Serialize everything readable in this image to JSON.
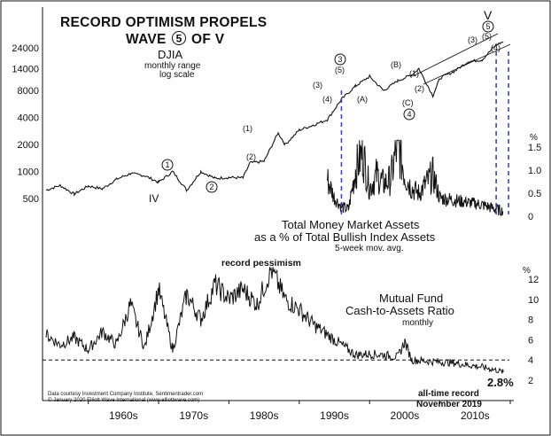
{
  "colors": {
    "line": "#111111",
    "projection": "#3a45c8",
    "background": "#ffffff"
  },
  "chart_data": [
    {
      "type": "line",
      "title": "RECORD OPTIMISM PROPELS",
      "title_line2_prefix": "WAVE",
      "title_line2_circled": "5",
      "title_line2_suffix": "OF V",
      "series_label": "DJIA",
      "series_sublabel_1": "monthly range",
      "series_sublabel_2": "log scale",
      "yscale": "log",
      "yticks": [
        "24000",
        "14000",
        "8000",
        "4000",
        "2000",
        "1000",
        "500"
      ],
      "ytick_values": [
        24000,
        14000,
        8000,
        4000,
        2000,
        1000,
        500
      ],
      "x": [
        1954,
        1956,
        1958,
        1960,
        1962,
        1964,
        1966,
        1968,
        1970,
        1972,
        1974,
        1976,
        1978,
        1980,
        1982,
        1983,
        1985,
        1987,
        1988,
        1990,
        1992,
        1994,
        1996,
        1998,
        2000,
        2002,
        2004,
        2006,
        2007,
        2009,
        2010,
        2012,
        2014,
        2016,
        2018,
        2019
      ],
      "values": [
        620,
        700,
        560,
        690,
        640,
        820,
        950,
        900,
        760,
        1000,
        620,
        1000,
        840,
        860,
        850,
        1250,
        1300,
        2700,
        2000,
        2900,
        3300,
        3800,
        6400,
        9000,
        11500,
        8000,
        10300,
        12000,
        14100,
        7000,
        11000,
        13100,
        16800,
        17700,
        26000,
        28000
      ],
      "wave_labels": [
        {
          "text": "IV",
          "x": 1974
        },
        {
          "text": "1",
          "circled": true,
          "x": 1972
        },
        {
          "text": "2",
          "circled": true,
          "x": 1982
        },
        {
          "text": "(1)",
          "x": 1987
        },
        {
          "text": "(2)",
          "x": 1987
        },
        {
          "text": "3",
          "circled": true,
          "x": 2000
        },
        {
          "text": "(5)",
          "x": 2000
        },
        {
          "text": "(3)",
          "x": 1998
        },
        {
          "text": "(4)",
          "x": 1998
        },
        {
          "text": "(A)",
          "x": 2002
        },
        {
          "text": "(B)",
          "x": 2007
        },
        {
          "text": "(C)",
          "x": 2009
        },
        {
          "text": "4",
          "circled": true,
          "x": 2009
        },
        {
          "text": "(1)",
          "x": 2010
        },
        {
          "text": "(2)",
          "x": 2010
        },
        {
          "text": "(3)",
          "x": 2018
        },
        {
          "text": "5",
          "circled": true,
          "x": 2019
        },
        {
          "text": "(5)",
          "x": 2019
        },
        {
          "text": "(4)",
          "x": 2019
        },
        {
          "text": "V",
          "x": 2019
        }
      ]
    },
    {
      "type": "line",
      "label_line1": "Total Money Market Assets",
      "label_line2": "as a % of Total Bullish Index Assets",
      "label_line3": "5-week mov. avg.",
      "unit": "%",
      "yticks": [
        "1.5",
        "1.0",
        "0.5",
        "0"
      ],
      "ylim": [
        0,
        1.6
      ],
      "x": [
        1994,
        1995,
        1996,
        1997,
        1998,
        1999,
        2000,
        2001,
        2002,
        2003,
        2004,
        2005,
        2006,
        2007,
        2008,
        2009,
        2010,
        2012,
        2014,
        2016,
        2018,
        2019
      ],
      "values": [
        0.8,
        0.4,
        0.2,
        0.15,
        1.0,
        1.4,
        0.6,
        0.9,
        0.7,
        0.8,
        1.6,
        0.9,
        0.6,
        0.5,
        0.7,
        0.9,
        0.4,
        0.35,
        0.3,
        0.25,
        0.15,
        0.1
      ],
      "projection_lines_x": [
        1996,
        2018,
        2019
      ]
    },
    {
      "type": "line",
      "annotation_top": "record pessimism",
      "label_line1": "Mutual Fund",
      "label_line2": "Cash-to-Assets Ratio",
      "label_line3": "monthly",
      "unit": "%",
      "yticks": [
        "12",
        "10",
        "8",
        "6",
        "4",
        "2"
      ],
      "ylim": [
        2,
        13
      ],
      "reference_line": 4,
      "x": [
        1954,
        1956,
        1958,
        1960,
        1962,
        1964,
        1966,
        1968,
        1970,
        1972,
        1974,
        1976,
        1978,
        1980,
        1982,
        1984,
        1986,
        1988,
        1990,
        1992,
        1994,
        1996,
        1998,
        2000,
        2002,
        2004,
        2005,
        2006,
        2008,
        2010,
        2012,
        2014,
        2016,
        2018,
        2019
      ],
      "values": [
        6.5,
        5.5,
        6.2,
        5.0,
        6.8,
        5.5,
        9.5,
        5.2,
        11.0,
        5.0,
        10.5,
        8.0,
        11.5,
        10.0,
        11.0,
        9.5,
        13.0,
        10.0,
        9.0,
        7.5,
        6.5,
        5.5,
        4.5,
        4.6,
        4.5,
        4.3,
        5.8,
        4.0,
        3.9,
        3.8,
        3.7,
        3.5,
        3.3,
        3.0,
        2.8
      ],
      "end_value_label": "2.8%",
      "end_note_1": "all-time record",
      "end_note_2": "November 2019"
    }
  ],
  "x_axis": {
    "ticks": [
      "1960s",
      "1970s",
      "1980s",
      "1990s",
      "2000s",
      "2010s"
    ]
  },
  "credits": {
    "line1": "Data courtesy Investment Company Institute, Sentimentrader.com",
    "line2": "© January 2020 Elliott Wave International (www.elliottwave.com)"
  }
}
